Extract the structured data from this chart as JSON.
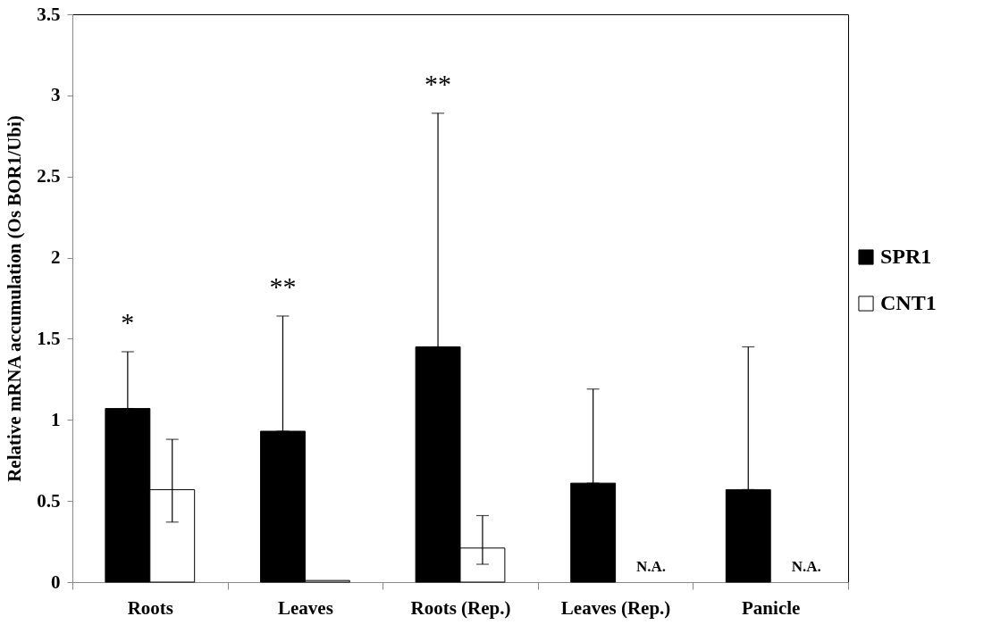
{
  "chart_data": {
    "type": "bar",
    "ylabel": "Relative mRNA accumulation (Os BOR1/Ubi)",
    "categories": [
      "Roots",
      "Leaves",
      "Roots (Rep.)",
      "Leaves (Rep.)",
      "Panicle"
    ],
    "series": [
      {
        "name": "SPR1",
        "color": "#000000",
        "values": [
          1.07,
          0.93,
          1.45,
          0.61,
          0.57
        ],
        "errors": [
          [
            1.07,
            1.42
          ],
          [
            0.93,
            1.64
          ],
          [
            1.45,
            2.89
          ],
          [
            0.61,
            1.19
          ],
          [
            0.57,
            1.45
          ]
        ]
      },
      {
        "name": "CNT1",
        "color": "#ffffff",
        "values": [
          0.57,
          0.01,
          0.21,
          null,
          null
        ],
        "errors": [
          [
            0.37,
            0.88
          ],
          null,
          [
            0.11,
            0.41
          ],
          null,
          null
        ]
      }
    ],
    "ylim": [
      0,
      3.5
    ],
    "yticks": [
      0,
      0.5,
      1,
      1.5,
      2,
      2.5,
      3,
      3.5
    ],
    "annotations": [
      "*",
      "**",
      "**",
      {
        "text": "N.A.",
        "x": "Leaves (Rep.)",
        "y": 0
      },
      {
        "text": "N.A.",
        "x": "Panicle",
        "y": 0
      }
    ],
    "legend": "right",
    "grid": false
  }
}
